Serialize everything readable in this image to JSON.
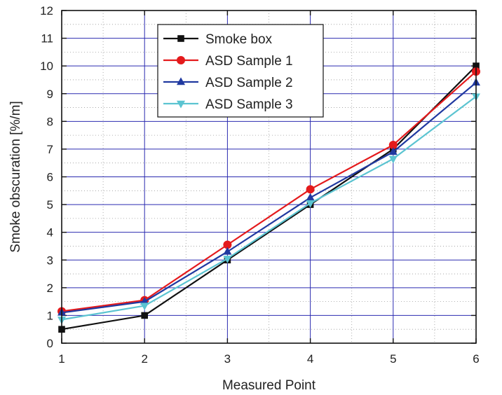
{
  "chart_data": {
    "type": "line",
    "xlabel": "Measured Point",
    "ylabel": "Smoke obscuration [%/m]",
    "x": [
      1,
      2,
      3,
      4,
      5,
      6
    ],
    "xlim": [
      1,
      6
    ],
    "ylim": [
      0,
      12
    ],
    "xticks": [
      1,
      2,
      3,
      4,
      5,
      6
    ],
    "yticks": [
      0,
      1,
      2,
      3,
      4,
      5,
      6,
      7,
      8,
      9,
      10,
      11,
      12
    ],
    "grid": true,
    "legend_position": "top-left",
    "series": [
      {
        "name": "Smoke box",
        "color": "#111111",
        "marker": "square",
        "values": [
          0.5,
          1.0,
          3.0,
          5.0,
          7.0,
          10.0
        ]
      },
      {
        "name": "ASD Sample 1",
        "color": "#e41a1c",
        "marker": "circle",
        "values": [
          1.15,
          1.55,
          3.55,
          5.55,
          7.15,
          9.8
        ]
      },
      {
        "name": "ASD Sample 2",
        "color": "#2039a0",
        "marker": "triangle-up",
        "values": [
          1.1,
          1.5,
          3.3,
          5.25,
          6.9,
          9.4
        ]
      },
      {
        "name": "ASD Sample 3",
        "color": "#5bc4d1",
        "marker": "triangle-down",
        "values": [
          0.85,
          1.35,
          3.05,
          5.05,
          6.65,
          8.9
        ]
      }
    ]
  }
}
